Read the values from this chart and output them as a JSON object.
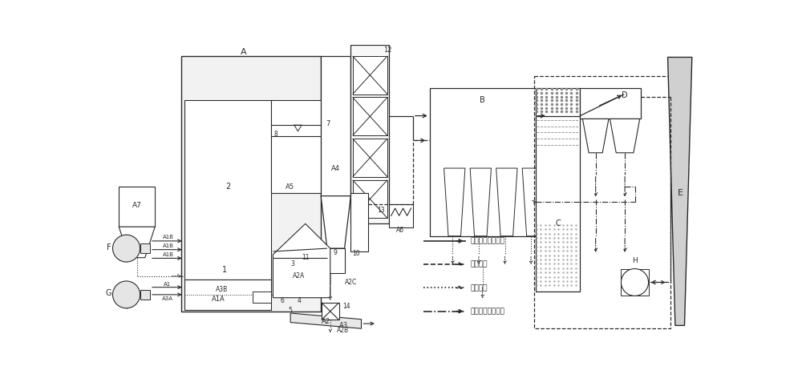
{
  "bg_color": "#ffffff",
  "lc": "#2a2a2a",
  "legend": [
    {
      "label": "一（二）次风流程",
      "ls": "solid"
    },
    {
      "label": "烟气流程",
      "ls": "dashed"
    },
    {
      "label": "灰渣流程",
      "ls": "dotted"
    },
    {
      "label": "除尘器回收水流程",
      "ls": "dashdot"
    }
  ]
}
